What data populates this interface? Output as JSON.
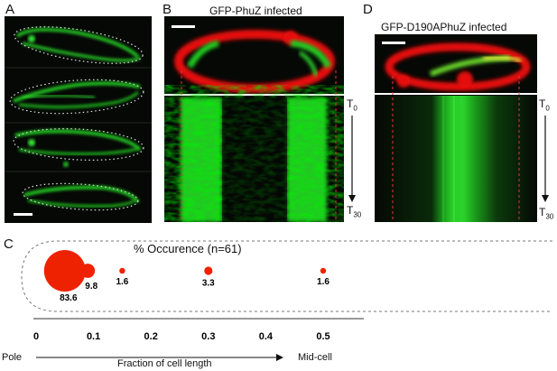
{
  "panels": {
    "a": {
      "label": "A"
    },
    "b": {
      "label": "B",
      "title": "GFP-PhuZ infected",
      "time_start": "T",
      "time_start_sub": "0",
      "time_end": "T",
      "time_end_sub": "30"
    },
    "c": {
      "label": "C"
    },
    "d": {
      "label": "D",
      "title": "GFP-D190APhuZ infected",
      "time_start": "T",
      "time_start_sub": "0",
      "time_end": "T",
      "time_end_sub": "30"
    }
  },
  "colors": {
    "gfp": "#22cc22",
    "membrane": "#ee1111",
    "bubble": "#ee2200"
  },
  "chart_data": {
    "type": "scatter",
    "title": "% Occurence (n=61)",
    "xlabel": "Fraction of cell length",
    "x_start_label": "Pole",
    "x_end_label": "Mid-cell",
    "xlim": [
      0,
      0.5
    ],
    "x_ticks": [
      "0",
      "0.1",
      "0.2",
      "0.3",
      "0.4",
      "0.5"
    ],
    "points": [
      {
        "x": 0.05,
        "value": 83.6,
        "label": "83.6"
      },
      {
        "x": 0.09,
        "value": 9.8,
        "label": "9.8"
      },
      {
        "x": 0.15,
        "value": 1.6,
        "label": "1.6"
      },
      {
        "x": 0.3,
        "value": 3.3,
        "label": "3.3"
      },
      {
        "x": 0.5,
        "value": 1.6,
        "label": "1.6"
      }
    ]
  }
}
